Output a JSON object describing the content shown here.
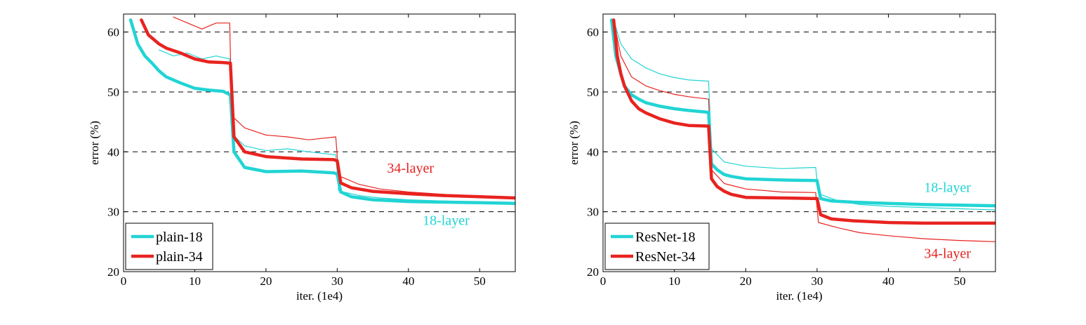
{
  "chart_data": [
    {
      "type": "line",
      "xlabel": "iter. (1e4)",
      "ylabel": "error (%)",
      "xlim": [
        0,
        55
      ],
      "ylim": [
        20,
        63
      ],
      "xticks": [
        "0",
        "10",
        "20",
        "30",
        "40",
        "50"
      ],
      "yticks": [
        "20",
        "30",
        "40",
        "50",
        "60"
      ],
      "grid": "dashed horizontal at 30, 40, 50, 60",
      "legend": {
        "position": "bottom-left",
        "entries": [
          "plain-18",
          "plain-34"
        ]
      },
      "annotations": [
        {
          "text": "34-layer",
          "color": "#e8231f",
          "at": [
            37,
            36.5
          ]
        },
        {
          "text": "18-layer",
          "color": "#22d4d4",
          "at": [
            42,
            27.8
          ]
        }
      ],
      "series": [
        {
          "name": "plain-18",
          "kind": "val",
          "color": "#22d4d4",
          "x": [
            1,
            2,
            3,
            4,
            5,
            6,
            8,
            10,
            12,
            14,
            15,
            15.5,
            17,
            20,
            25,
            29.5,
            30,
            30.5,
            32,
            35,
            40,
            45,
            50,
            55
          ],
          "y": [
            62,
            58,
            56,
            54.8,
            53.5,
            52.5,
            51.5,
            50.6,
            50.3,
            50.1,
            49.5,
            40,
            37.4,
            36.7,
            36.8,
            36.5,
            36.3,
            33.3,
            32.5,
            32.0,
            31.7,
            31.6,
            31.5,
            31.4
          ]
        },
        {
          "name": "plain-34",
          "kind": "val",
          "color": "#e8231f",
          "x": [
            2.5,
            3.5,
            5,
            6,
            8,
            10,
            12,
            14,
            15,
            15.5,
            17,
            20,
            25,
            29.5,
            30,
            30.5,
            32,
            35,
            40,
            45,
            50,
            55
          ],
          "y": [
            62,
            59.5,
            58,
            57.3,
            56.5,
            55.5,
            55.0,
            54.9,
            54.8,
            42.5,
            40,
            39.2,
            38.8,
            38.7,
            38.5,
            34.8,
            34.0,
            33.4,
            33.0,
            32.7,
            32.5,
            32.3
          ]
        },
        {
          "name": "plain-18 train",
          "kind": "train",
          "color": "#22d4d4",
          "x": [
            5,
            7,
            9,
            11,
            13,
            14.9,
            15.2,
            17,
            20,
            23,
            26,
            29.8,
            30.2,
            33,
            36,
            40,
            45,
            50,
            55
          ],
          "y": [
            57,
            56,
            56.5,
            55.5,
            56,
            55.5,
            43,
            41,
            40.2,
            40.5,
            40.0,
            39.5,
            33.5,
            32.7,
            32.3,
            32.0,
            31.8,
            31.6,
            31.5
          ]
        },
        {
          "name": "plain-34 train",
          "kind": "train",
          "color": "#e8231f",
          "x": [
            7,
            9,
            11,
            13,
            14.9,
            15.2,
            17,
            20,
            23,
            26,
            29.8,
            30.2,
            33,
            36,
            40,
            45,
            50,
            55
          ],
          "y": [
            62.5,
            61.5,
            60.5,
            61.5,
            61.5,
            46,
            44,
            42.8,
            42.5,
            42.0,
            42.5,
            36,
            34.6,
            33.8,
            33.3,
            32.9,
            32.6,
            32.4
          ]
        }
      ]
    },
    {
      "type": "line",
      "xlabel": "iter. (1e4)",
      "ylabel": "error (%)",
      "xlim": [
        0,
        55
      ],
      "ylim": [
        20,
        63
      ],
      "xticks": [
        "0",
        "10",
        "20",
        "30",
        "40",
        "50"
      ],
      "yticks": [
        "20",
        "30",
        "40",
        "50",
        "60"
      ],
      "grid": "dashed horizontal at 30, 40, 50, 60",
      "legend": {
        "position": "bottom-left",
        "entries": [
          "ResNet-18",
          "ResNet-34"
        ]
      },
      "annotations": [
        {
          "text": "18-layer",
          "color": "#22d4d4",
          "at": [
            45,
            33.3
          ]
        },
        {
          "text": "34-layer",
          "color": "#e8231f",
          "at": [
            45,
            22.3
          ]
        }
      ],
      "series": [
        {
          "name": "ResNet-18",
          "kind": "val",
          "color": "#22d4d4",
          "x": [
            1.2,
            1.8,
            2.5,
            3,
            4,
            5,
            6,
            8,
            10,
            12,
            14.8,
            15.2,
            16,
            17,
            18,
            20,
            25,
            30,
            30.5,
            32,
            35,
            40,
            45,
            50,
            55
          ],
          "y": [
            62,
            56,
            53,
            51,
            49.5,
            48.8,
            48.2,
            47.6,
            47.2,
            46.9,
            46.6,
            38,
            37,
            36.2,
            35.9,
            35.5,
            35.3,
            35.2,
            32.2,
            31.8,
            31.6,
            31.4,
            31.2,
            31.1,
            31.0
          ]
        },
        {
          "name": "ResNet-34",
          "kind": "val",
          "color": "#e8231f",
          "x": [
            1.5,
            2,
            2.5,
            3,
            4,
            5,
            6,
            8,
            10,
            12,
            14.8,
            15.2,
            16,
            17,
            18,
            20,
            25,
            30,
            30.5,
            32,
            35,
            40,
            45,
            50,
            55
          ],
          "y": [
            62,
            56,
            53,
            51,
            48.5,
            47.2,
            46.5,
            45.5,
            44.8,
            44.4,
            44.3,
            35.5,
            34.2,
            33.4,
            32.9,
            32.4,
            32.3,
            32.2,
            29.5,
            28.8,
            28.5,
            28.2,
            28.1,
            28.1,
            28.1
          ]
        },
        {
          "name": "ResNet-18 train",
          "kind": "train",
          "color": "#22d4d4",
          "x": [
            1.5,
            2.5,
            4,
            6,
            8,
            10,
            12,
            14.8,
            15.2,
            17,
            20,
            25,
            29.8,
            30.2,
            33,
            36,
            40,
            45,
            50,
            55
          ],
          "y": [
            62,
            58,
            55.5,
            54,
            53,
            52.4,
            52.0,
            51.8,
            40.5,
            38.3,
            37.6,
            37.2,
            37.4,
            33.0,
            31.8,
            31.2,
            30.9,
            30.7,
            30.5,
            30.3
          ]
        },
        {
          "name": "ResNet-34 train",
          "kind": "train",
          "color": "#e8231f",
          "x": [
            1.5,
            2.5,
            4,
            6,
            8,
            10,
            12,
            14.8,
            15.2,
            17,
            20,
            25,
            29.8,
            30.2,
            33,
            36,
            40,
            45,
            50,
            55
          ],
          "y": [
            62,
            56,
            52.5,
            51,
            50.2,
            49.6,
            49.2,
            48.8,
            37.0,
            34.7,
            33.8,
            33.3,
            33.2,
            28.2,
            27.3,
            26.5,
            26.0,
            25.5,
            25.2,
            25.0
          ]
        }
      ]
    }
  ]
}
